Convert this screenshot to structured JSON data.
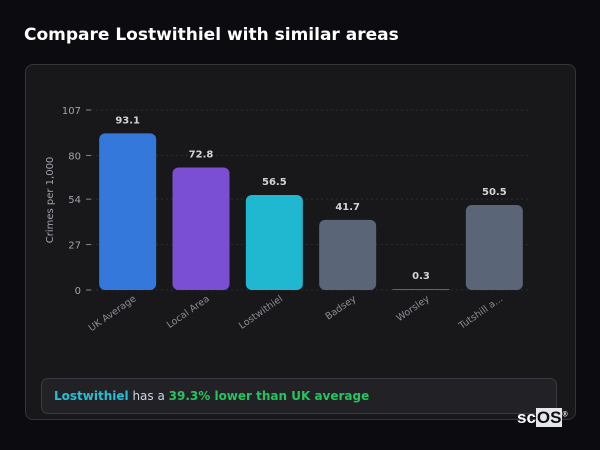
{
  "title": "Compare Lostwithiel with similar areas",
  "chart_data": {
    "type": "bar",
    "ylabel": "Crimes per 1,000",
    "xlabel": "",
    "ylim": [
      0,
      107
    ],
    "yticks": [
      0,
      27,
      54,
      80,
      107
    ],
    "grid": true,
    "categories": [
      "UK Average",
      "Local Area",
      "Lostwithiel",
      "Badsey",
      "Worsley",
      "Tutshill a..."
    ],
    "values": [
      93.1,
      72.8,
      56.5,
      41.7,
      0.3,
      50.5
    ],
    "data_labels": [
      "93.1",
      "72.8",
      "56.5",
      "41.7",
      "0.3",
      "50.5"
    ],
    "colors": [
      "#3578dc",
      "#7a4fd4",
      "#20b8d0",
      "#5a6678",
      "#5a6678",
      "#5a6678"
    ]
  },
  "summary": {
    "area": "Lostwithiel",
    "middle": " has a ",
    "highlight": "39.3% lower than UK average"
  },
  "logo": {
    "part1": "sc",
    "part2": "OS",
    "mark": "®"
  }
}
